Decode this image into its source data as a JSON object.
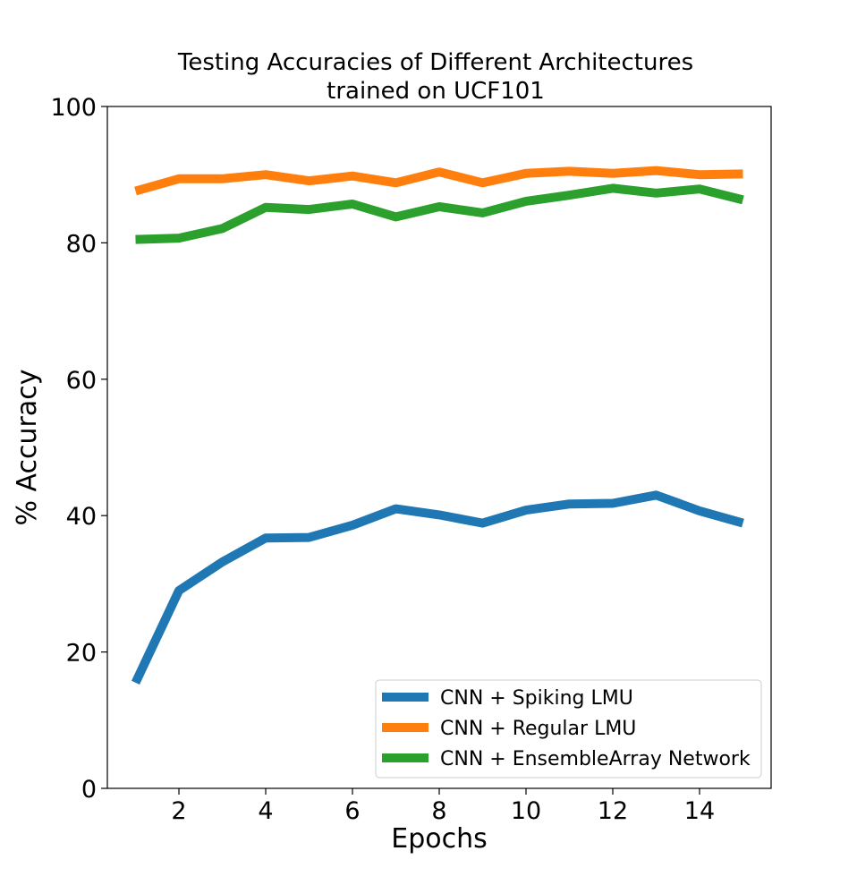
{
  "chart_data": {
    "type": "line",
    "title": [
      "Testing Accuracies of Different Architectures",
      "trained on UCF101"
    ],
    "xlabel": "Epochs",
    "ylabel": "% Accuracy",
    "xlim": [
      0.35,
      15.65
    ],
    "ylim": [
      0,
      100
    ],
    "xticks": [
      2,
      4,
      6,
      8,
      10,
      12,
      14
    ],
    "yticks": [
      0,
      20,
      40,
      60,
      80,
      100
    ],
    "grid": false,
    "legend_position": "lower-right",
    "x": [
      1,
      2,
      3,
      4,
      5,
      6,
      7,
      8,
      9,
      10,
      11,
      12,
      13,
      14,
      15
    ],
    "series": [
      {
        "name": "CNN + Spiking LMU",
        "color": "#1f77b4",
        "values": [
          15.5,
          29.0,
          33.2,
          36.7,
          36.8,
          38.6,
          41.0,
          40.1,
          38.9,
          40.8,
          41.7,
          41.8,
          43.0,
          40.7,
          38.9
        ]
      },
      {
        "name": "CNN + Regular LMU",
        "color": "#ff7f0e",
        "values": [
          87.6,
          89.4,
          89.4,
          90.0,
          89.1,
          89.8,
          88.8,
          90.4,
          88.8,
          90.2,
          90.5,
          90.2,
          90.6,
          90.0,
          90.1
        ]
      },
      {
        "name": "CNN + EnsembleArray Network",
        "color": "#2ca02c",
        "values": [
          80.5,
          80.7,
          82.1,
          85.2,
          84.9,
          85.7,
          83.8,
          85.3,
          84.4,
          86.1,
          87.0,
          88.0,
          87.3,
          87.9,
          86.3
        ]
      }
    ]
  }
}
